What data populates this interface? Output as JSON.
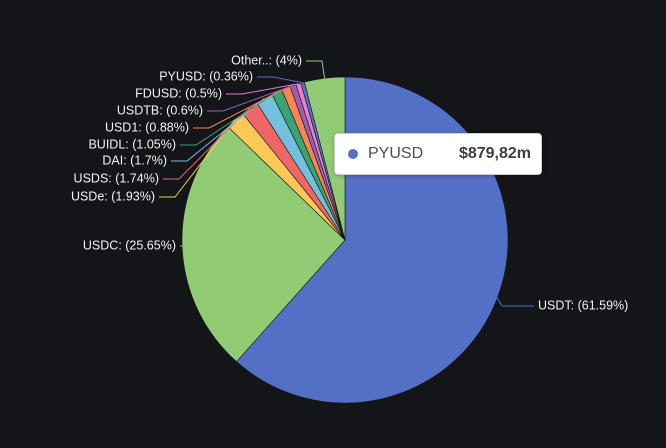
{
  "chart_data": {
    "type": "pie",
    "title": "",
    "slices": [
      {
        "name": "USDT",
        "percent": 61.59,
        "label": "USDT: (61.59%)",
        "color": "#5470c6"
      },
      {
        "name": "USDC",
        "percent": 25.65,
        "label": "USDC: (25.65%)",
        "color": "#91cc75"
      },
      {
        "name": "USDe",
        "percent": 1.93,
        "label": "USDe: (1.93%)",
        "color": "#fac858"
      },
      {
        "name": "USDS",
        "percent": 1.74,
        "label": "USDS: (1.74%)",
        "color": "#ee6666"
      },
      {
        "name": "DAI",
        "percent": 1.7,
        "label": "DAI: (1.7%)",
        "color": "#73c0de"
      },
      {
        "name": "BUIDL",
        "percent": 1.05,
        "label": "BUIDL: (1.05%)",
        "color": "#3ba272"
      },
      {
        "name": "USD1",
        "percent": 0.88,
        "label": "USD1: (0.88%)",
        "color": "#fc8452"
      },
      {
        "name": "USDTB",
        "percent": 0.6,
        "label": "USDTB: (0.6%)",
        "color": "#9a60b4"
      },
      {
        "name": "FDUSD",
        "percent": 0.5,
        "label": "FDUSD: (0.5%)",
        "color": "#ea7ccc"
      },
      {
        "name": "PYUSD",
        "percent": 0.36,
        "label": "PYUSD: (0.36%)",
        "color": "#5470c6"
      },
      {
        "name": "Other..",
        "percent": 4,
        "label": "Other..: (4%)",
        "color": "#91cc75"
      }
    ],
    "tooltip": {
      "name": "PYUSD",
      "value": "$879,82m",
      "color": "#5470c6"
    }
  },
  "colors": {
    "background": "#141519",
    "label_text": "#f2f2f2"
  }
}
